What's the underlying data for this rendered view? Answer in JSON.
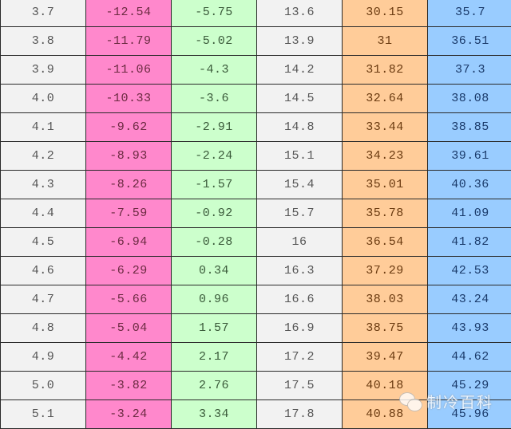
{
  "table": {
    "column_colors": [
      "#f2f2f2",
      "#ff88cc",
      "#ccffcc",
      "#f2f2f2",
      "#ffcc99",
      "#99ccff"
    ],
    "rows": [
      [
        "3.7",
        "-12.54",
        "-5.75",
        "13.6",
        "30.15",
        "35.7"
      ],
      [
        "3.8",
        "-11.79",
        "-5.02",
        "13.9",
        "31",
        "36.51"
      ],
      [
        "3.9",
        "-11.06",
        "-4.3",
        "14.2",
        "31.82",
        "37.3"
      ],
      [
        "4.0",
        "-10.33",
        "-3.6",
        "14.5",
        "32.64",
        "38.08"
      ],
      [
        "4.1",
        "-9.62",
        "-2.91",
        "14.8",
        "33.44",
        "38.85"
      ],
      [
        "4.2",
        "-8.93",
        "-2.24",
        "15.1",
        "34.23",
        "39.61"
      ],
      [
        "4.3",
        "-8.26",
        "-1.57",
        "15.4",
        "35.01",
        "40.36"
      ],
      [
        "4.4",
        "-7.59",
        "-0.92",
        "15.7",
        "35.78",
        "41.09"
      ],
      [
        "4.5",
        "-6.94",
        "-0.28",
        "16",
        "36.54",
        "41.82"
      ],
      [
        "4.6",
        "-6.29",
        "0.34",
        "16.3",
        "37.29",
        "42.53"
      ],
      [
        "4.7",
        "-5.66",
        "0.96",
        "16.6",
        "38.03",
        "43.24"
      ],
      [
        "4.8",
        "-5.04",
        "1.57",
        "16.9",
        "38.75",
        "43.93"
      ],
      [
        "4.9",
        "-4.42",
        "2.17",
        "17.2",
        "39.47",
        "44.62"
      ],
      [
        "5.0",
        "-3.82",
        "2.76",
        "17.5",
        "40.18",
        "45.29"
      ],
      [
        "5.1",
        "-3.24",
        "3.34",
        "17.8",
        "40.88",
        "45.96"
      ]
    ]
  },
  "watermark": {
    "icon": "wechat-icon",
    "text": "制冷百科"
  }
}
